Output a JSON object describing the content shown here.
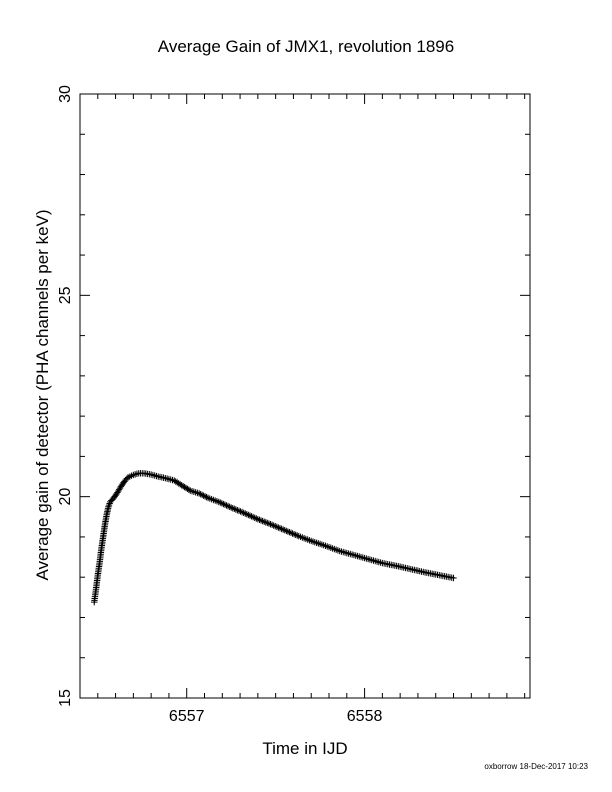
{
  "chart_data": {
    "type": "scatter",
    "title": "Average Gain of JMX1, revolution 1896",
    "xlabel": "Time in IJD",
    "ylabel": "Average gain of detector (PHA channels per keV)",
    "xlim": [
      6556.4,
      6558.93
    ],
    "ylim": [
      15,
      30
    ],
    "xticks_major": [
      6557,
      6558
    ],
    "xtick_labels": [
      "6557",
      "6558"
    ],
    "xticks_minor_step": 0.1,
    "yticks_major": [
      15,
      20,
      25,
      30
    ],
    "ytick_labels": [
      "15",
      "20",
      "25",
      "30"
    ],
    "yticks_minor_step": 1,
    "grid": false,
    "marker": "plus",
    "color": "#000000",
    "series": [
      {
        "points": [
          [
            6556.48,
            17.38
          ],
          [
            6556.49,
            17.7
          ],
          [
            6556.5,
            18.05
          ],
          [
            6556.51,
            18.35
          ],
          [
            6556.52,
            18.7
          ],
          [
            6556.53,
            19.0
          ],
          [
            6556.54,
            19.3
          ],
          [
            6556.55,
            19.55
          ],
          [
            6556.56,
            19.75
          ],
          [
            6556.57,
            19.87
          ],
          [
            6556.59,
            19.97
          ],
          [
            6556.61,
            20.1
          ],
          [
            6556.63,
            20.25
          ],
          [
            6556.65,
            20.38
          ],
          [
            6556.67,
            20.48
          ],
          [
            6556.7,
            20.54
          ],
          [
            6556.73,
            20.58
          ],
          [
            6556.76,
            20.58
          ],
          [
            6556.8,
            20.55
          ],
          [
            6556.84,
            20.5
          ],
          [
            6556.88,
            20.46
          ],
          [
            6556.93,
            20.4
          ],
          [
            6556.98,
            20.26
          ],
          [
            6557.02,
            20.15
          ],
          [
            6557.07,
            20.08
          ],
          [
            6557.12,
            19.97
          ],
          [
            6557.18,
            19.87
          ],
          [
            6557.25,
            19.73
          ],
          [
            6557.32,
            19.6
          ],
          [
            6557.4,
            19.44
          ],
          [
            6557.48,
            19.3
          ],
          [
            6557.56,
            19.15
          ],
          [
            6557.63,
            19.02
          ],
          [
            6557.7,
            18.9
          ],
          [
            6557.78,
            18.78
          ],
          [
            6557.86,
            18.65
          ],
          [
            6557.94,
            18.55
          ],
          [
            6558.02,
            18.45
          ],
          [
            6558.1,
            18.35
          ],
          [
            6558.18,
            18.28
          ],
          [
            6558.26,
            18.2
          ],
          [
            6558.34,
            18.12
          ],
          [
            6558.42,
            18.05
          ],
          [
            6558.5,
            17.98
          ]
        ]
      }
    ]
  },
  "footer": {
    "stamp": "oxborrow 18-Dec-2017 10:23"
  }
}
